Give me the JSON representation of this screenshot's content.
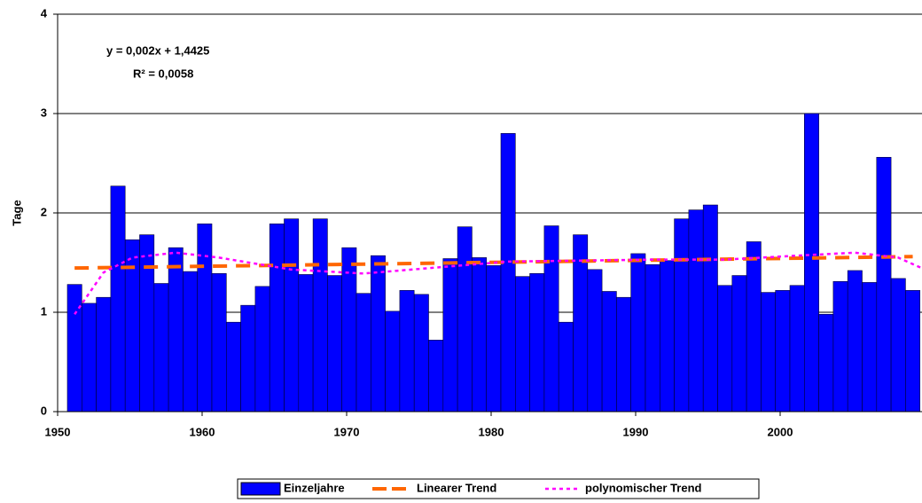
{
  "chart_data": {
    "type": "bar",
    "y_label": "Tage",
    "annotations": [
      "y = 0,002x + 1,4425",
      "R² = 0,0058"
    ],
    "categories": [
      "1950",
      null,
      null,
      null,
      null,
      null,
      null,
      null,
      null,
      null,
      "1960",
      null,
      null,
      null,
      null,
      null,
      null,
      null,
      null,
      null,
      "1970",
      null,
      null,
      null,
      null,
      null,
      null,
      null,
      null,
      null,
      "1980",
      null,
      null,
      null,
      null,
      null,
      null,
      null,
      null,
      null,
      "1990",
      null,
      null,
      null,
      null,
      null,
      null,
      null,
      null,
      null,
      "2000",
      null,
      null,
      null,
      null,
      null,
      null,
      null,
      null
    ],
    "series": [
      {
        "name": "Einzeljahre",
        "color": "#0000ff",
        "values": [
          1.28,
          1.09,
          1.15,
          2.27,
          1.73,
          1.78,
          1.29,
          1.65,
          1.41,
          1.89,
          1.39,
          0.9,
          1.07,
          1.26,
          1.89,
          1.94,
          1.38,
          1.94,
          1.37,
          1.65,
          1.19,
          1.57,
          1.01,
          1.22,
          1.18,
          0.72,
          1.54,
          1.86,
          1.55,
          1.47,
          2.8,
          1.36,
          1.39,
          1.87,
          0.9,
          1.78,
          1.43,
          1.21,
          1.15,
          1.59,
          1.48,
          1.52,
          1.94,
          2.03,
          2.08,
          1.27,
          1.37,
          1.71,
          1.2,
          1.22,
          1.27,
          3.0,
          0.98,
          1.31,
          1.42,
          1.3,
          2.56,
          1.34,
          1.22
        ]
      },
      {
        "name": "Linearer Trend",
        "color": "#ff6600",
        "x": [
          1950,
          2008
        ],
        "values": [
          1.445,
          1.56
        ]
      },
      {
        "name": "polynomischer Trend",
        "color": "#ff00ff",
        "x": [
          1950,
          1952,
          1954,
          1957,
          1960,
          1965,
          1970,
          1975,
          1980,
          1985,
          1990,
          1995,
          2000,
          2004,
          2007,
          2009
        ],
        "values": [
          0.98,
          1.4,
          1.55,
          1.6,
          1.55,
          1.43,
          1.39,
          1.45,
          1.51,
          1.52,
          1.53,
          1.53,
          1.57,
          1.6,
          1.55,
          1.42
        ]
      }
    ],
    "ylim": [
      0,
      4
    ],
    "yticks": [
      0,
      1,
      2,
      3,
      4
    ],
    "grid": true
  }
}
